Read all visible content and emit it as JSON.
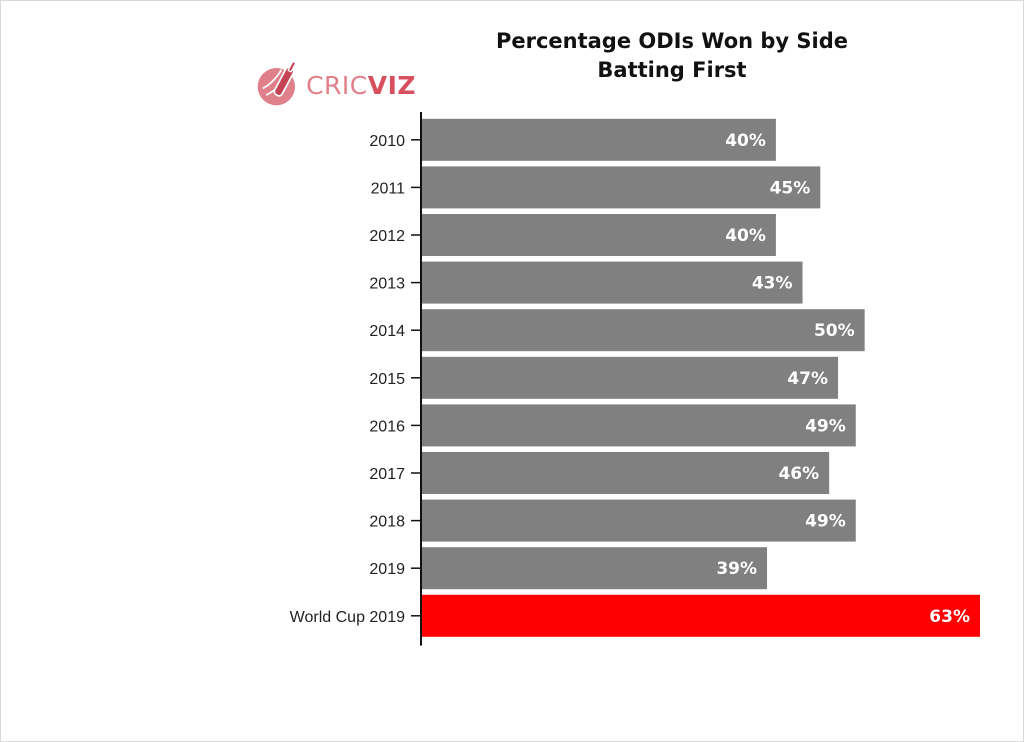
{
  "logo": {
    "text_light": "CRIC",
    "text_bold": "VIZ"
  },
  "colors": {
    "default_bar": "#808080",
    "highlight_bar": "#ff0000",
    "axis": "#111111",
    "logo": "#d8505e"
  },
  "chart_data": {
    "type": "bar",
    "orientation": "horizontal",
    "title": "Percentage ODIs Won by Side\nBatting First",
    "categories": [
      "2010",
      "2011",
      "2012",
      "2013",
      "2014",
      "2015",
      "2016",
      "2017",
      "2018",
      "2019",
      "World Cup 2019"
    ],
    "values": [
      40,
      45,
      40,
      43,
      50,
      47,
      49,
      46,
      49,
      39,
      63
    ],
    "value_labels": [
      "40%",
      "45%",
      "40%",
      "43%",
      "50%",
      "47%",
      "49%",
      "46%",
      "49%",
      "39%",
      "63%"
    ],
    "highlight_category": "World Cup 2019",
    "xlim": [
      0,
      63
    ],
    "grid": false,
    "legend": "none"
  }
}
